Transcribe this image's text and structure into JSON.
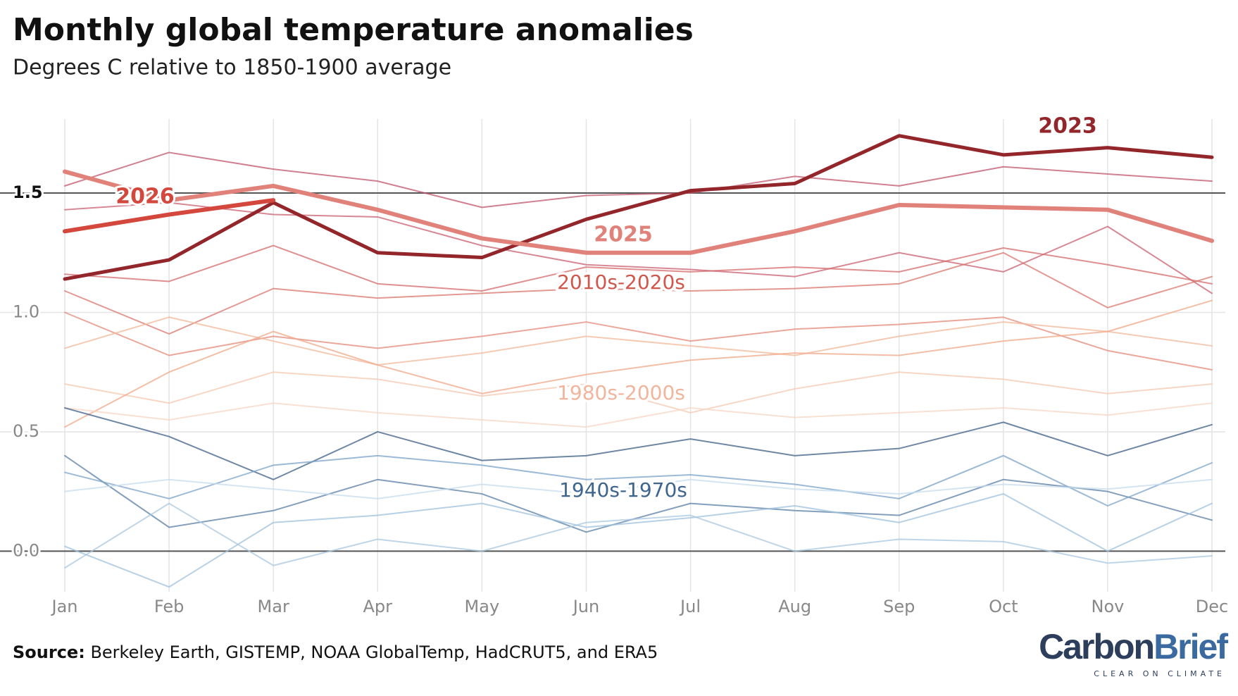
{
  "chart_data": {
    "type": "line",
    "title": "Monthly global temperature anomalies",
    "subtitle": "Degrees C relative to 1850-1900 average",
    "categories": [
      "Jan",
      "Feb",
      "Mar",
      "Apr",
      "May",
      "Jun",
      "Jul",
      "Aug",
      "Sep",
      "Oct",
      "Nov",
      "Dec"
    ],
    "ylim": [
      -0.17,
      1.81
    ],
    "yticks": [
      {
        "value": 0,
        "label": "0.0"
      },
      0.5,
      {
        "value": 1,
        "label": "1.0"
      },
      1.5
    ],
    "reference_lines": [
      0,
      1.5
    ],
    "grid": true,
    "series": [
      {
        "color": "#c0566b",
        "values": [
          1.53,
          1.67,
          1.6,
          1.55,
          1.44,
          1.49,
          1.5,
          1.57,
          1.53,
          1.61,
          1.58,
          1.55
        ]
      },
      {
        "color": "#c96070",
        "values": [
          1.43,
          1.46,
          1.41,
          1.4,
          1.28,
          1.2,
          1.18,
          1.15,
          1.25,
          1.17,
          1.36,
          1.08
        ]
      },
      {
        "color": "#d9756e",
        "values": [
          1.09,
          0.91,
          1.1,
          1.06,
          1.08,
          1.1,
          1.09,
          1.1,
          1.12,
          1.25,
          1.02,
          1.15
        ]
      },
      {
        "color": "#e38a78",
        "values": [
          1.0,
          0.82,
          0.9,
          0.85,
          0.9,
          0.96,
          0.88,
          0.93,
          0.95,
          0.98,
          0.84,
          0.76
        ]
      },
      {
        "color": "#d46a6a",
        "values": [
          1.16,
          1.13,
          1.28,
          1.12,
          1.09,
          1.19,
          1.17,
          1.19,
          1.17,
          1.27,
          1.2,
          1.12
        ]
      },
      {
        "color": "#f2b89a",
        "values": [
          0.85,
          0.98,
          0.88,
          0.78,
          0.83,
          0.9,
          0.86,
          0.82,
          0.9,
          0.96,
          0.92,
          0.86
        ]
      },
      {
        "color": "#f5c8b0",
        "values": [
          0.7,
          0.62,
          0.75,
          0.72,
          0.65,
          0.7,
          0.58,
          0.68,
          0.75,
          0.72,
          0.66,
          0.7
        ]
      },
      {
        "color": "#f0a888",
        "values": [
          0.52,
          0.75,
          0.92,
          0.78,
          0.66,
          0.74,
          0.8,
          0.83,
          0.82,
          0.88,
          0.92,
          1.05
        ]
      },
      {
        "color": "#f6d5c4",
        "values": [
          0.6,
          0.55,
          0.62,
          0.58,
          0.55,
          0.52,
          0.6,
          0.56,
          0.58,
          0.6,
          0.57,
          0.62
        ]
      },
      {
        "color": "#3d5f86",
        "values": [
          0.6,
          0.48,
          0.3,
          0.5,
          0.38,
          0.4,
          0.47,
          0.4,
          0.43,
          0.54,
          0.4,
          0.53
        ]
      },
      {
        "color": "#5b7fa6",
        "values": [
          0.4,
          0.1,
          0.17,
          0.3,
          0.24,
          0.08,
          0.2,
          0.17,
          0.15,
          0.3,
          0.25,
          0.13
        ]
      },
      {
        "color": "#7ba3c8",
        "values": [
          0.33,
          0.22,
          0.36,
          0.4,
          0.36,
          0.3,
          0.32,
          0.28,
          0.22,
          0.4,
          0.19,
          0.37
        ]
      },
      {
        "color": "#9ec0dc",
        "values": [
          0.02,
          -0.15,
          0.12,
          0.15,
          0.2,
          0.1,
          0.14,
          0.19,
          0.12,
          0.24,
          0.0,
          0.2
        ]
      },
      {
        "color": "#a9c7e0",
        "values": [
          -0.07,
          0.2,
          -0.06,
          0.05,
          0.0,
          0.12,
          0.15,
          0.0,
          0.05,
          0.04,
          -0.05,
          -0.02
        ]
      },
      {
        "color": "#c6dcec",
        "values": [
          0.25,
          0.3,
          0.26,
          0.22,
          0.28,
          0.24,
          0.3,
          0.26,
          0.24,
          0.28,
          0.26,
          0.3
        ]
      },
      {
        "name": "2023",
        "color": "#93262a",
        "values": [
          1.14,
          1.22,
          1.46,
          1.25,
          1.23,
          1.39,
          1.51,
          1.54,
          1.74,
          1.66,
          1.69,
          1.65
        ]
      },
      {
        "name": "2025",
        "color": "#e0817a",
        "values": [
          1.59,
          1.47,
          1.53,
          1.43,
          1.31,
          1.25,
          1.25,
          1.34,
          1.45,
          1.44,
          1.43,
          1.3
        ]
      },
      {
        "name": "2026",
        "color": "#d3473d",
        "values": [
          1.34,
          1.41,
          1.47,
          null,
          null,
          null,
          null,
          null,
          null,
          null,
          null,
          null
        ]
      }
    ],
    "annotations": [
      {
        "text": "2010s-2020s",
        "color": "#d0574c"
      },
      {
        "text": "1980s-2000s",
        "color": "#f2b49b"
      },
      {
        "text": "1940s-1970s",
        "color": "#3e6590"
      }
    ],
    "source_label": "Source:",
    "source_text": "Berkeley Earth, GISTEMP, NOAA GlobalTemp, HadCRUT5, and ERA5",
    "logo": {
      "part1": "Carbon",
      "part2": "Brief",
      "tagline": "CLEAR ON CLIMATE"
    }
  }
}
